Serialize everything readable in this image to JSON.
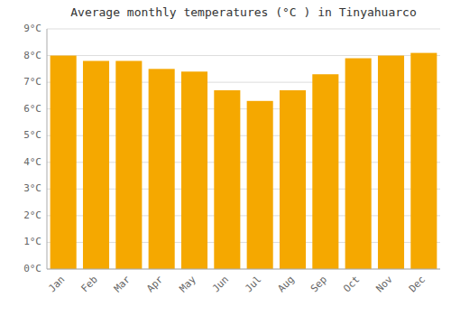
{
  "chart_data": {
    "type": "bar",
    "title": "Average monthly temperatures (°C ) in Tinyahuarco",
    "categories": [
      "Jan",
      "Feb",
      "Mar",
      "Apr",
      "May",
      "Jun",
      "Jul",
      "Aug",
      "Sep",
      "Oct",
      "Nov",
      "Dec"
    ],
    "values": [
      8.0,
      7.8,
      7.8,
      7.5,
      7.4,
      6.7,
      6.3,
      6.7,
      7.3,
      7.9,
      8.0,
      8.1
    ],
    "color": "#F5A800",
    "ylim": [
      0,
      9
    ],
    "yticks": [
      {
        "value": 0,
        "label": "0°C"
      },
      {
        "value": 1,
        "label": "1°C"
      },
      {
        "value": 2,
        "label": "2°C"
      },
      {
        "value": 3,
        "label": "3°C"
      },
      {
        "value": 4,
        "label": "4°C"
      },
      {
        "value": 5,
        "label": "5°C"
      },
      {
        "value": 6,
        "label": "6°C"
      },
      {
        "value": 7,
        "label": "7°C"
      },
      {
        "value": 8,
        "label": "8°C"
      },
      {
        "value": 9,
        "label": "9°C"
      }
    ],
    "grid": true
  }
}
